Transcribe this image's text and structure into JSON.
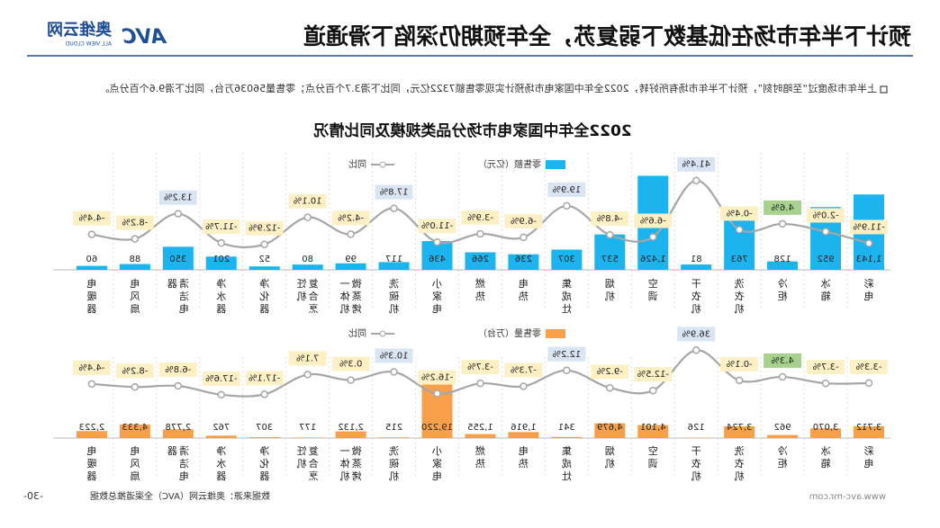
{
  "page": {
    "title": "预计下半年市场在低基数下弱复苏，全年预期仍深陷下滑通道",
    "logo_name": "奥维云网",
    "logo_sub": "ALL VIEW CLOUD",
    "logo_mark": "AVC",
    "intro": "上半年市场度过“至暗时刻”，预计下半年市场有所好转，2022全年中国家电市场预计实现零售额7322亿元，同比下滑3.7个百分点；零售量56036万台，同比下滑9.6个百分点。",
    "chart_title": "2022全年中国家电市场分品类规模及同比情况",
    "source": "数据来源：奥维云网（AVC）全渠道推总数据",
    "page_number": "-30-",
    "website": "www.avc-mr.com"
  },
  "chart_data": [
    {
      "type": "bar",
      "categories": [
        "彩电",
        "冰箱",
        "冷柜",
        "洗衣机",
        "干衣机",
        "空调",
        "烟机",
        "集成灶",
        "电热",
        "燃热",
        "小家电",
        "洗碗机",
        "微蒸烤一体机",
        "复合烹饪机",
        "净化器",
        "净水器",
        "清洁电器",
        "电风扇",
        "电暖器"
      ],
      "ylim": [
        0,
        1500
      ],
      "y2lim": [
        -20,
        45
      ],
      "series": [
        {
          "name": "零售额（亿元）",
          "color": "#1cb4ee",
          "values": [
            1143,
            952,
            128,
            763,
            81,
            1426,
            537,
            307,
            236,
            266,
            436,
            117,
            99,
            80,
            52,
            201,
            350,
            88,
            60
          ],
          "value_labels": [
            "1,143",
            "952",
            "128",
            "763",
            "81",
            "1,426",
            "537",
            "307",
            "236",
            "266",
            "436",
            "117",
            "99",
            "80",
            "52",
            "201",
            "350",
            "88",
            "60"
          ]
        },
        {
          "name": "同比",
          "type": "line",
          "axis": "y2",
          "color": "#a6a6a6",
          "values": [
            -11.9,
            -2.0,
            4.6,
            -0.4,
            41.4,
            -6.6,
            -4.8,
            19.9,
            -6.9,
            -3.9,
            -11.0,
            17.8,
            -4.2,
            10.1,
            -12.9,
            -11.7,
            13.2,
            -8.2,
            -4.4
          ],
          "value_labels": [
            "-11.9%",
            "-2.0%",
            "4.6%",
            "-0.4%",
            "41.4%",
            "-6.6%",
            "-4.8%",
            "19.9%",
            "-6.9%",
            "-3.9%",
            "-11.0%",
            "17.8%",
            "-4.2%",
            "10.1%",
            "-12.9%",
            "-11.7%",
            "13.2%",
            "-8.2%",
            "-4.4%"
          ],
          "label_colors": [
            "#fdf0c4",
            "#fdf0c4",
            "#a9d18e",
            "#fdf0c4",
            "#dae5f3",
            "#fdf0c4",
            "#fdf0c4",
            "#dae5f3",
            "#fdf0c4",
            "#fdf0c4",
            "#fdf0c4",
            "#dae5f3",
            "#fdf0c4",
            "#fdf0c4",
            "#fdf0c4",
            "#fdf0c4",
            "#dae5f3",
            "#fdf0c4",
            "#fdf0c4"
          ]
        }
      ]
    },
    {
      "type": "bar",
      "categories": [
        "彩电",
        "冰箱",
        "冷柜",
        "洗衣机",
        "干衣机",
        "空调",
        "烟机",
        "集成灶",
        "电热",
        "燃热",
        "小家电",
        "洗碗机",
        "微蒸烤一体机",
        "复合烹饪机",
        "净化器",
        "净水器",
        "清洁电器",
        "电风扇",
        "电暖器"
      ],
      "ylim": [
        0,
        20000
      ],
      "y2lim": [
        -20,
        45
      ],
      "series": [
        {
          "name": "零售量（万台）",
          "color": "#f7a04b",
          "values": [
            3712,
            3070,
            962,
            3724,
            126,
            4101,
            4679,
            341,
            1916,
            1255,
            19220,
            215,
            2132,
            177,
            307,
            762,
            2778,
            4333,
            2223
          ],
          "value_labels": [
            "3,712",
            "3,070",
            "962",
            "3,724",
            "126",
            "4,101",
            "4,679",
            "341",
            "1,916",
            "1,255",
            "19,220",
            "215",
            "2,132",
            "177",
            "307",
            "762",
            "2,778",
            "4,333",
            "2,223"
          ]
        },
        {
          "name": "同比",
          "type": "line",
          "axis": "y2",
          "color": "#a6a6a6",
          "values": [
            -3.3,
            -3.7,
            4.3,
            -0.1,
            36.9,
            -12.5,
            -9.2,
            12.2,
            -7.3,
            -3.7,
            -16.2,
            10.3,
            0.3,
            7.1,
            -17.1,
            -17.6,
            -6.8,
            -8.2,
            -4.4
          ],
          "value_labels": [
            "-3.3%",
            "-3.7%",
            "4.3%",
            "-0.1%",
            "36.9%",
            "-12.5%",
            "-9.2%",
            "12.2%",
            "-7.3%",
            "-3.7%",
            "-16.2%",
            "10.3%",
            "0.3%",
            "7.1%",
            "-17.1%",
            "-17.6%",
            "-6.8%",
            "-8.2%",
            "-4.4%"
          ],
          "label_colors": [
            "#fdf0c4",
            "#fdf0c4",
            "#a9d18e",
            "#fdf0c4",
            "#dae5f3",
            "#fdf0c4",
            "#fdf0c4",
            "#dae5f3",
            "#fdf0c4",
            "#fdf0c4",
            "#fdf0c4",
            "#dae5f3",
            "#fdf0c4",
            "#fdf0c4",
            "#fdf0c4",
            "#fdf0c4",
            "#fdf0c4",
            "#fdf0c4",
            "#fdf0c4"
          ]
        }
      ]
    }
  ]
}
